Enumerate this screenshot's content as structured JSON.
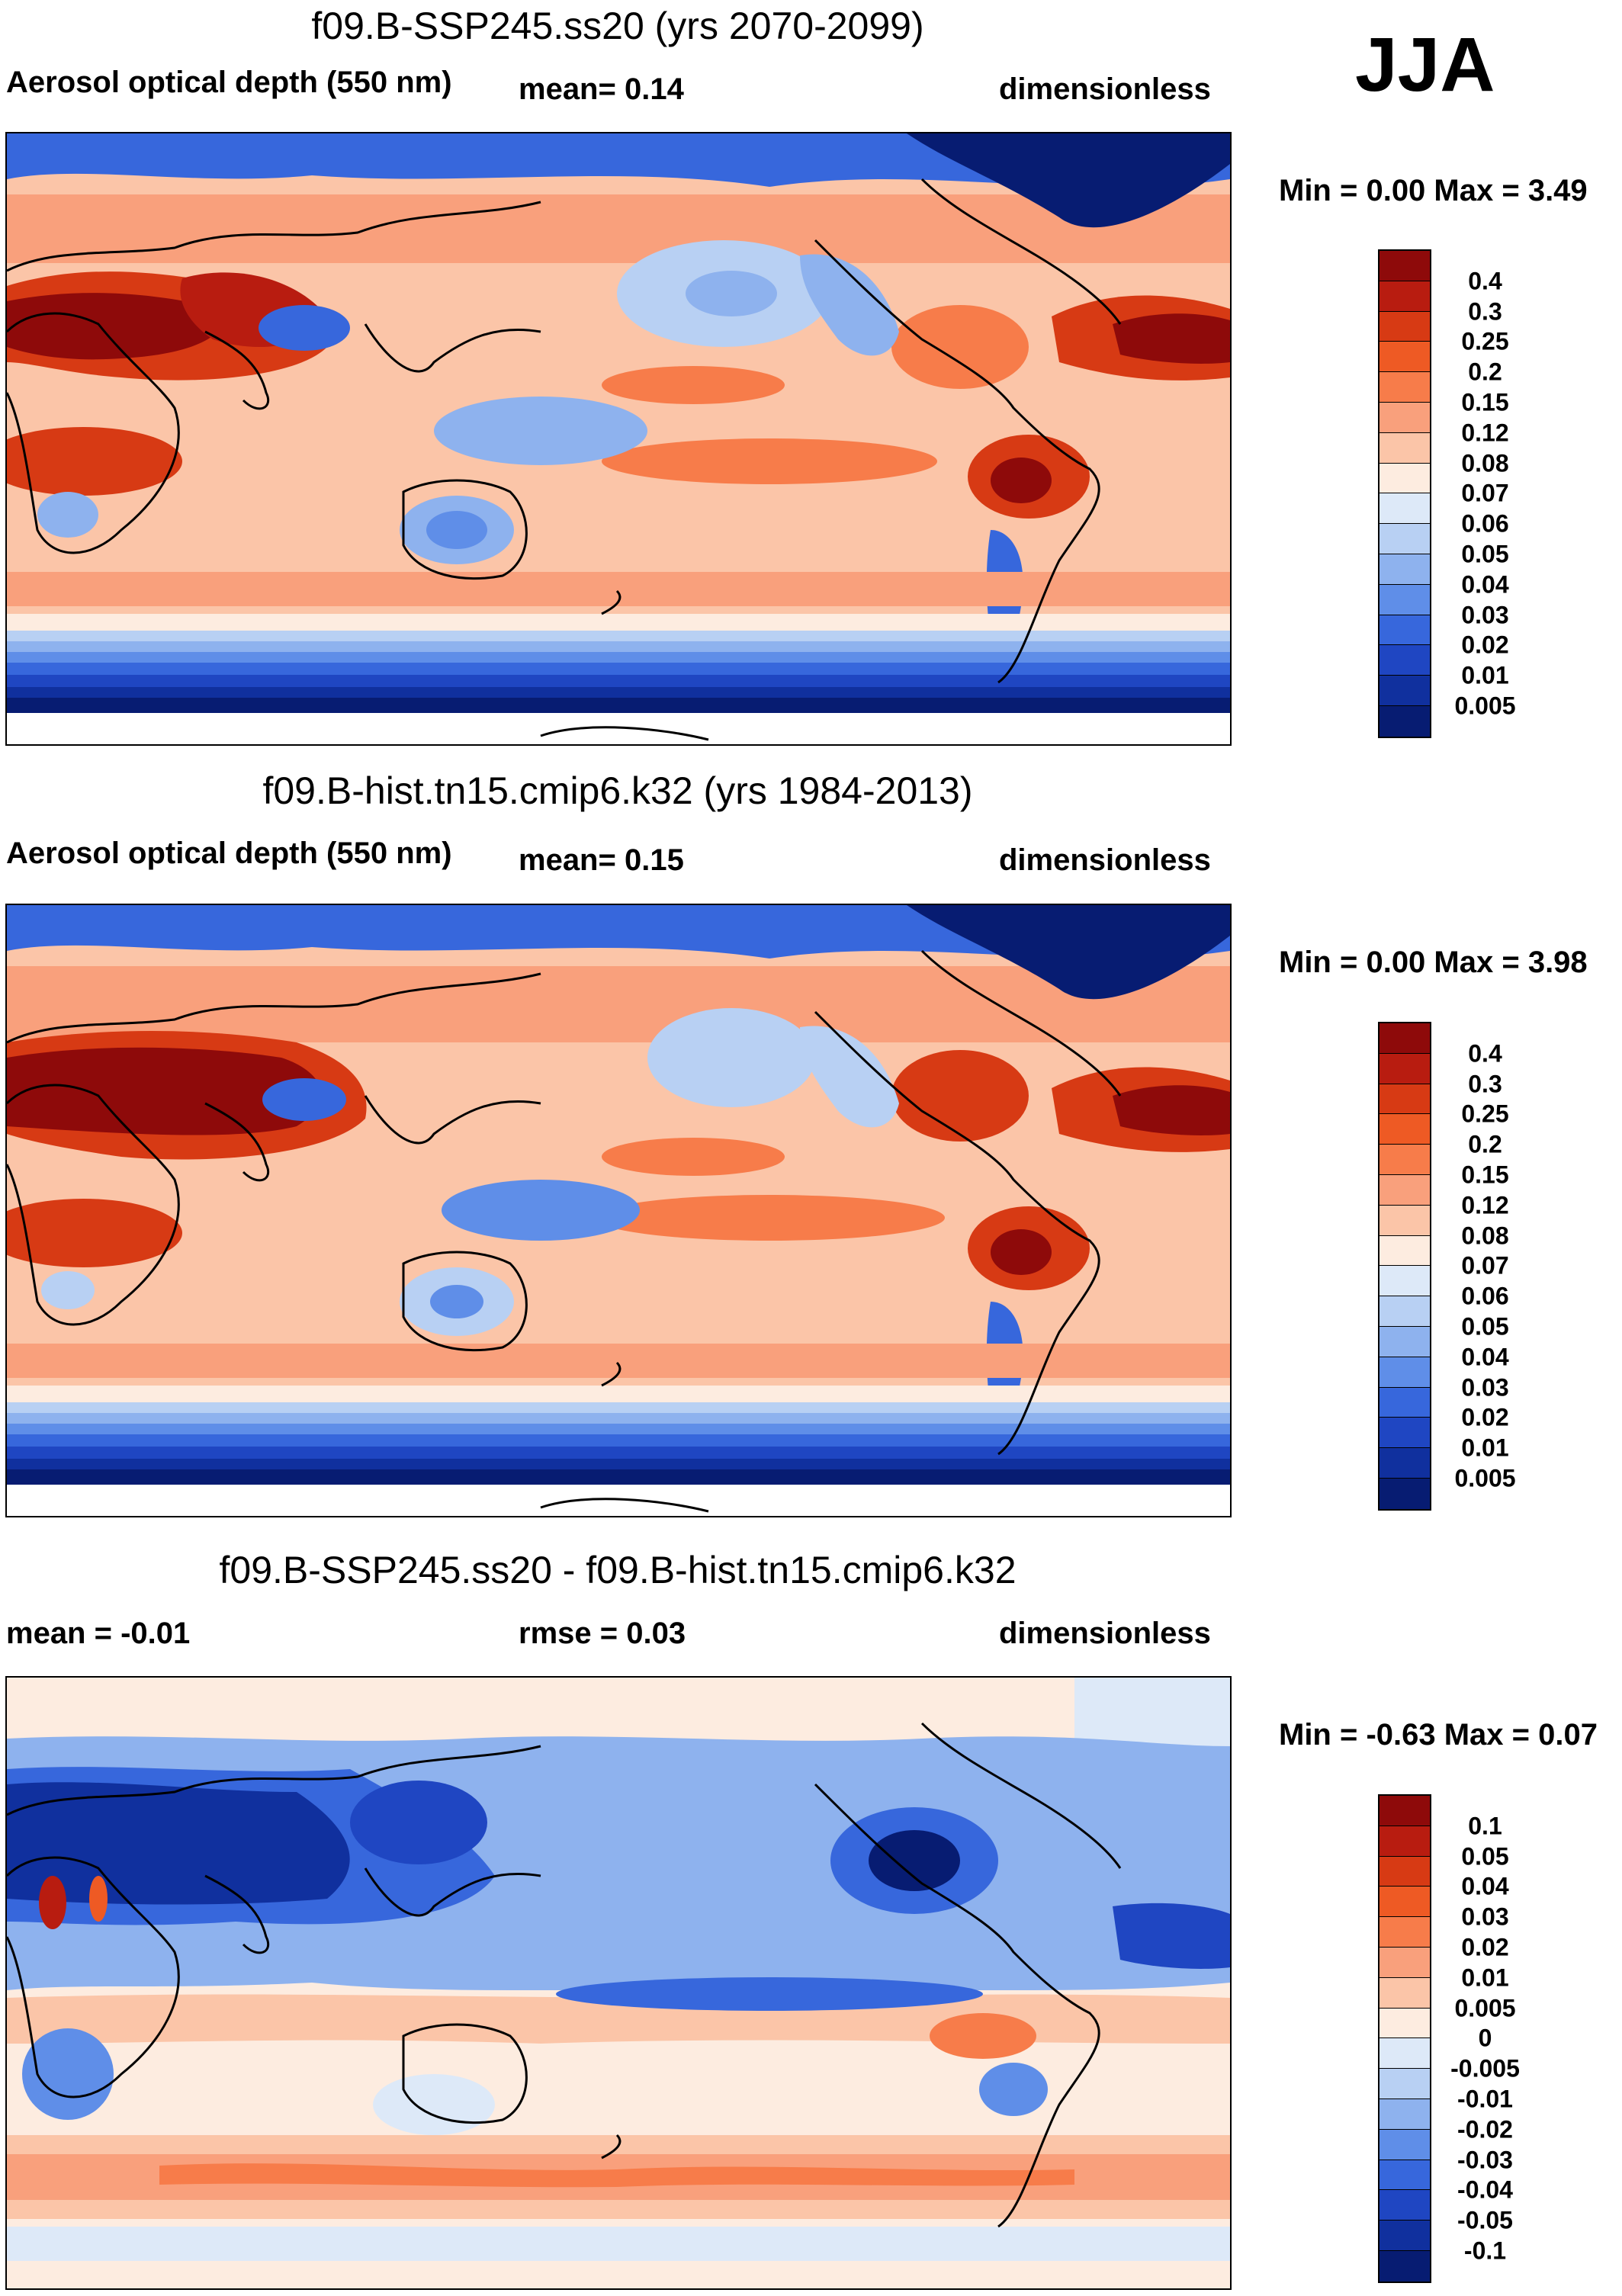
{
  "season": "JJA",
  "panels": [
    {
      "title": "f09.B-SSP245.ss20 (yrs 2070-2099)",
      "left_text": "Aerosol optical depth (550 nm)",
      "mid_text": "mean=   0.14",
      "right_text": "dimensionless",
      "minmax": "Min =   0.00 Max =   3.49"
    },
    {
      "title": "f09.B-hist.tn15.cmip6.k32 (yrs 1984-2013)",
      "left_text": "Aerosol optical depth (550 nm)",
      "mid_text": "mean=   0.15",
      "right_text": "dimensionless",
      "minmax": "Min =   0.00 Max =   3.98"
    },
    {
      "title": "f09.B-SSP245.ss20 - f09.B-hist.tn15.cmip6.k32",
      "left_text": "mean =  -0.01",
      "mid_text": "rmse =   0.03",
      "right_text": "dimensionless",
      "minmax": "Min =  -0.63 Max =   0.07"
    }
  ],
  "colorbars": {
    "aod": {
      "labels": [
        "0.4",
        "0.3",
        "0.25",
        "0.2",
        "0.15",
        "0.12",
        "0.08",
        "0.07",
        "0.06",
        "0.05",
        "0.04",
        "0.03",
        "0.02",
        "0.01",
        "0.005"
      ],
      "colors": [
        "#8e0a0a",
        "#b81c10",
        "#d73a14",
        "#ee5a24",
        "#f77c4a",
        "#f9a07c",
        "#fbc5a8",
        "#fdece0",
        "#dde9f8",
        "#b8d0f3",
        "#8eb2ee",
        "#5f8ee8",
        "#3767dc",
        "#1f46c2",
        "#10309e",
        "#071c72"
      ]
    },
    "diff": {
      "labels": [
        "0.1",
        "0.05",
        "0.04",
        "0.03",
        "0.02",
        "0.01",
        "0.005",
        "0",
        "-0.005",
        "-0.01",
        "-0.02",
        "-0.03",
        "-0.04",
        "-0.05",
        "-0.1"
      ],
      "colors": [
        "#8e0a0a",
        "#b81c10",
        "#d73a14",
        "#ee5a24",
        "#f77c4a",
        "#f9a07c",
        "#fbc5a8",
        "#fdece0",
        "#dde9f8",
        "#b8d0f3",
        "#8eb2ee",
        "#5f8ee8",
        "#3767dc",
        "#1f46c2",
        "#10309e",
        "#071c72"
      ]
    }
  },
  "map_colors": {
    "dark_red": "#8e0a0a",
    "red": "#d73a14",
    "orange": "#f77c4a",
    "salmon": "#fbc5a8",
    "cream": "#fdece0",
    "light_blue": "#b8d0f3",
    "blue": "#3767dc",
    "dark_blue": "#071c72"
  }
}
